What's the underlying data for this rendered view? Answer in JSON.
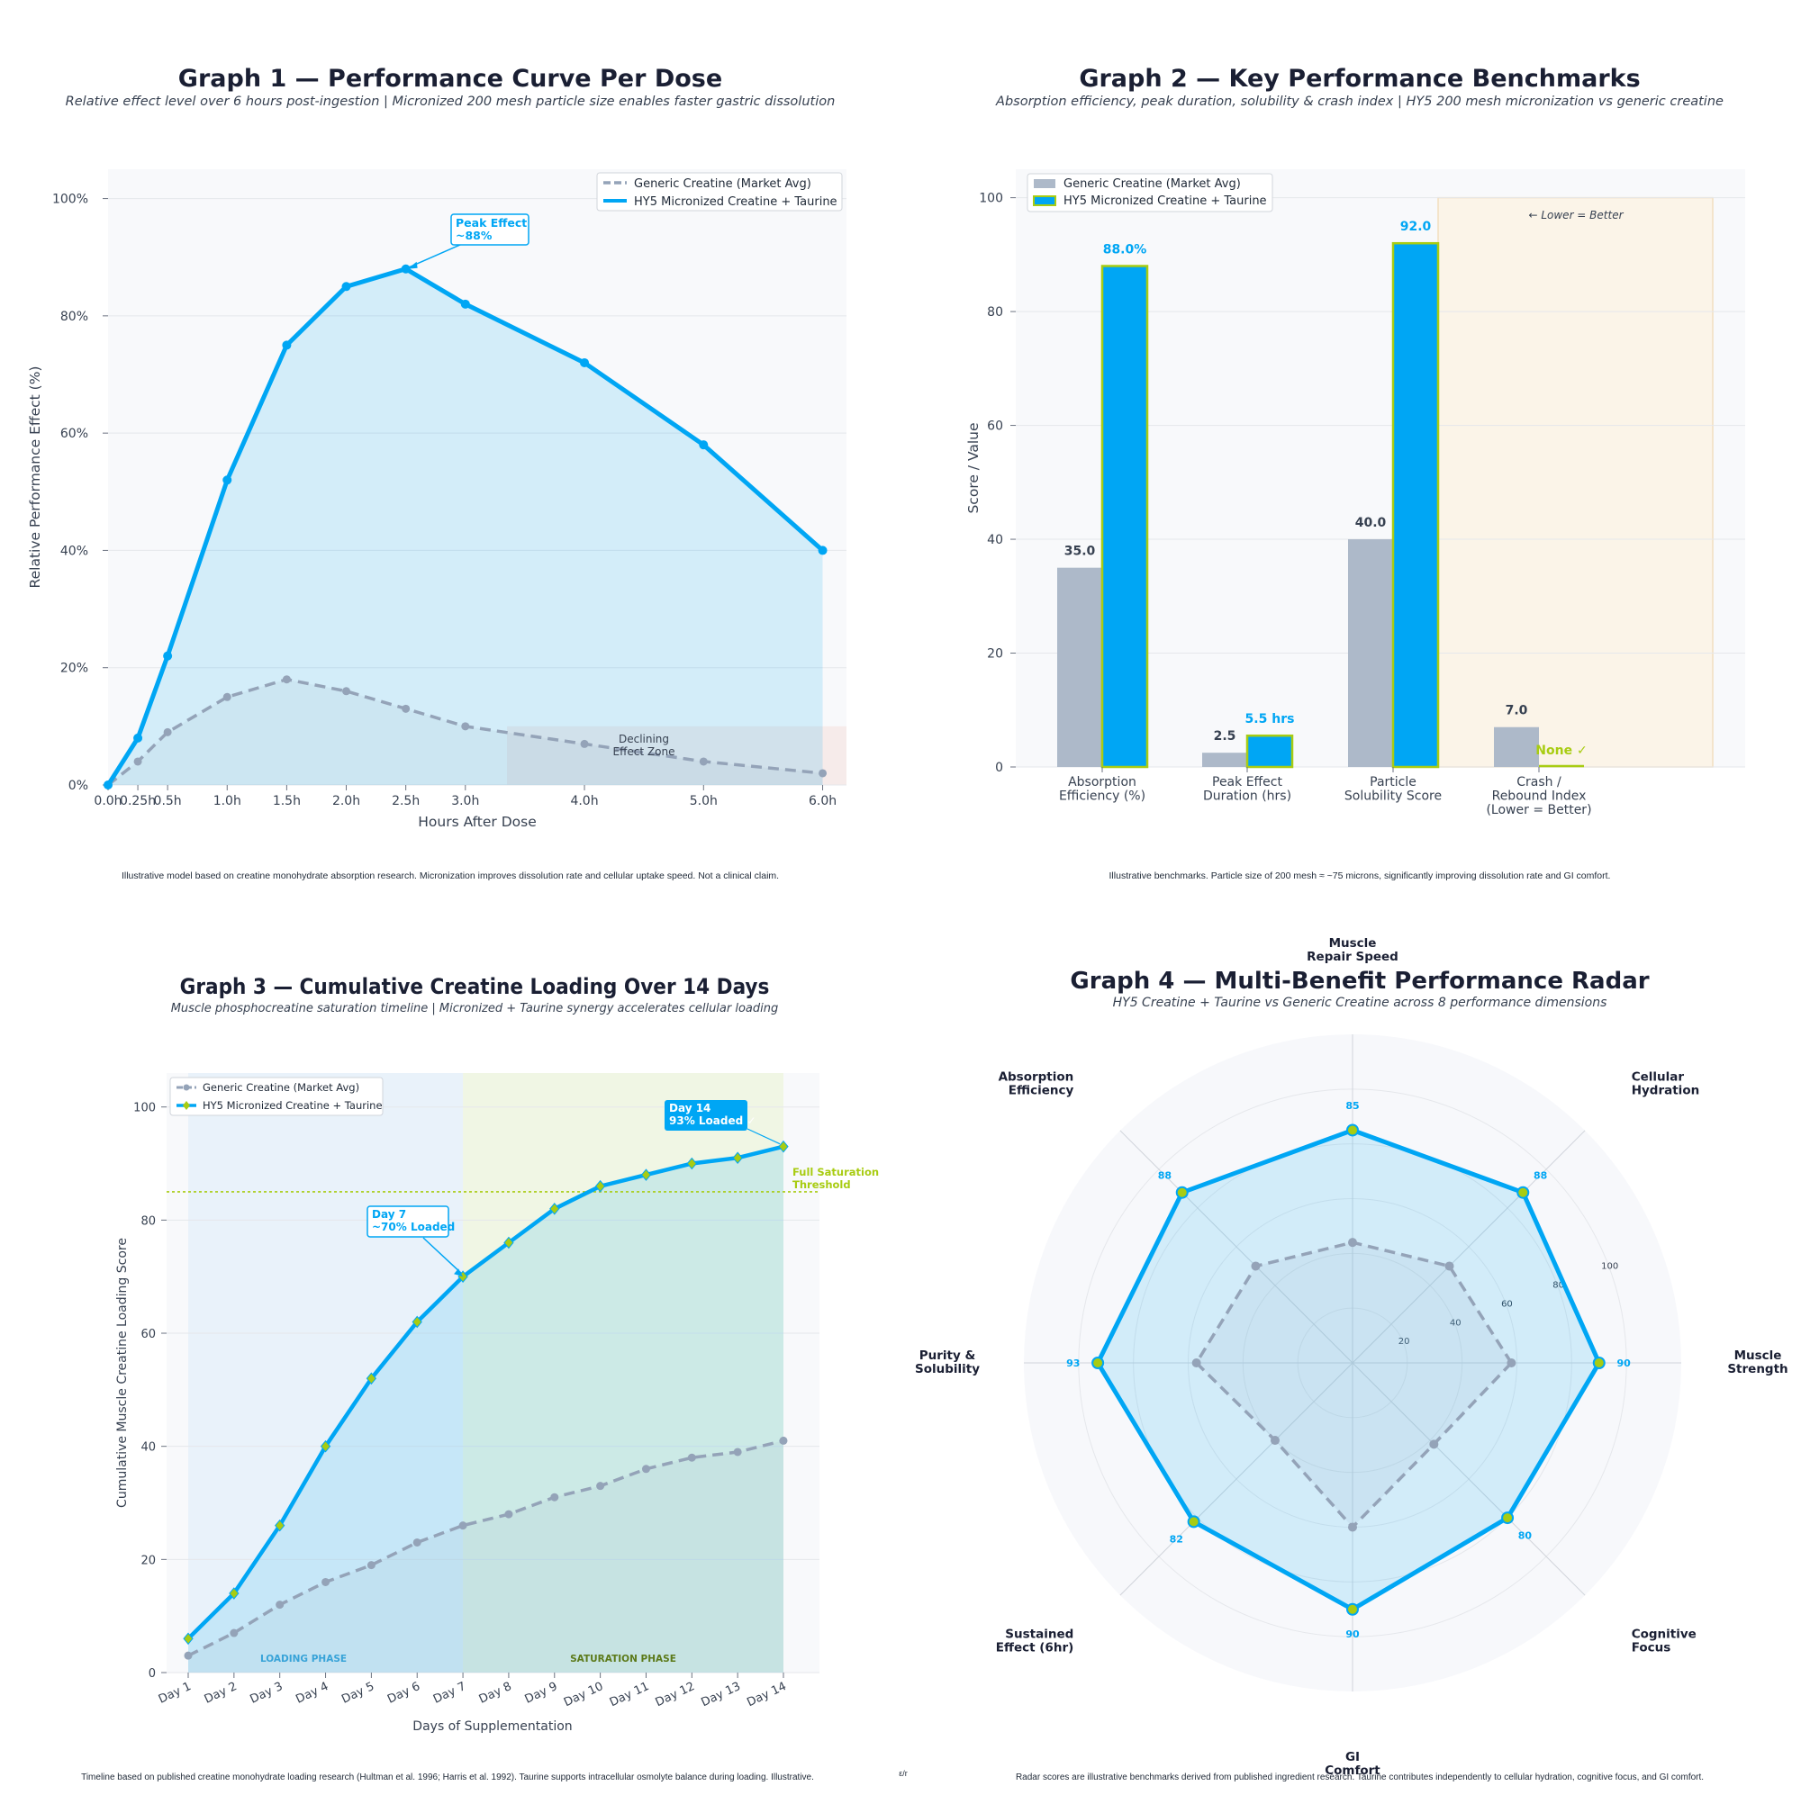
{
  "colors": {
    "hy5": "#00a6f4",
    "generic": "#94a3b8",
    "generic_bar": "#adb9c9",
    "lime": "#a8cc12",
    "annotation_red": "#e07b5a",
    "panel_bg": "#f8f9fb"
  },
  "footer_mark": "ε/r",
  "chart_data": [
    {
      "type": "line",
      "title": "Graph 1 — Performance Curve Per Dose",
      "subtitle": "Relative effect level over 6 hours post-ingestion | Micronized 200 mesh particle size enables faster gastric dissolution",
      "xlabel": "Hours After Dose",
      "ylabel": "Relative Performance Effect (%)",
      "x": [
        0,
        0.25,
        0.5,
        1.0,
        1.5,
        2.0,
        2.5,
        3.0,
        4.0,
        5.0,
        6.0
      ],
      "x_tick_labels": [
        "0.0h",
        "0.25h",
        "0.5h",
        "1.0h",
        "1.5h",
        "2.0h",
        "2.5h",
        "3.0h",
        "4.0h",
        "5.0h",
        "6.0h"
      ],
      "xlim": [
        0,
        6.2
      ],
      "ylim": [
        0,
        105
      ],
      "y_ticks": [
        0,
        20,
        40,
        60,
        80,
        100
      ],
      "y_tick_labels": [
        "0%",
        "20%",
        "40%",
        "60%",
        "80%",
        "100%"
      ],
      "series": [
        {
          "name": "Generic Creatine (Market Avg)",
          "values": [
            0,
            4,
            9,
            15,
            18,
            16,
            13,
            10,
            7,
            4,
            2
          ]
        },
        {
          "name": "HY5 Micronized Creatine + Taurine",
          "values": [
            0,
            8,
            22,
            52,
            75,
            85,
            88,
            82,
            72,
            58,
            40
          ]
        }
      ],
      "annotations": {
        "peak_line1": "Peak Effect",
        "peak_line2": "~88%",
        "declining_line1": "Declining",
        "declining_line2": "Effect Zone"
      },
      "declining_zone_x": [
        3.35,
        6.2
      ],
      "declining_zone_y": [
        0,
        10
      ],
      "legend": "top-right",
      "grid": true,
      "footnote": "Illustrative model based on creatine monohydrate absorption research. Micronization improves dissolution rate and cellular uptake speed. Not a clinical claim."
    },
    {
      "type": "bar",
      "title": "Graph 2 — Key Performance Benchmarks",
      "subtitle": "Absorption efficiency, peak duration, solubility & crash index | HY5 200 mesh micronization vs generic creatine",
      "ylabel": "Score / Value",
      "ylim": [
        0,
        105
      ],
      "y_ticks": [
        0,
        20,
        40,
        60,
        80,
        100
      ],
      "categories": [
        [
          "Absorption",
          "Efficiency (%)"
        ],
        [
          "Peak Effect",
          "Duration (hrs)"
        ],
        [
          "Particle",
          "Solubility Score"
        ],
        [
          "Crash /",
          "Rebound Index",
          "(Lower = Better)"
        ]
      ],
      "series": [
        {
          "name": "Generic Creatine (Market Avg)",
          "values": [
            35,
            2.5,
            40,
            7
          ],
          "labels": [
            "35.0",
            "2.5",
            "40.0",
            "7.0"
          ]
        },
        {
          "name": "HY5 Micronized Creatine + Taurine",
          "values": [
            88,
            5.5,
            92,
            0
          ],
          "labels": [
            "88.0%",
            "5.5 hrs",
            "92.0",
            "None ✓"
          ]
        }
      ],
      "lower_better_note": "← Lower = Better",
      "legend": "top-left",
      "grid": true,
      "footnote": "Illustrative benchmarks. Particle size of 200 mesh ≈ ~75 microns, significantly improving dissolution rate and GI comfort."
    },
    {
      "type": "line",
      "title": "Graph 3 — Cumulative Creatine Loading Over 14 Days",
      "subtitle": "Muscle phosphocreatine saturation timeline | Micronized + Taurine synergy accelerates cellular loading",
      "xlabel": "Days of Supplementation",
      "ylabel": "Cumulative Muscle Creatine Loading Score",
      "categories": [
        "Day 1",
        "Day 2",
        "Day 3",
        "Day 4",
        "Day 5",
        "Day 6",
        "Day 7",
        "Day 8",
        "Day 9",
        "Day 10",
        "Day 11",
        "Day 12",
        "Day 13",
        "Day 14"
      ],
      "ylim": [
        0,
        106
      ],
      "y_ticks": [
        0,
        20,
        40,
        60,
        80,
        100
      ],
      "series": [
        {
          "name": "Generic Creatine (Market Avg)",
          "values": [
            3,
            7,
            12,
            16,
            19,
            23,
            26,
            28,
            31,
            33,
            36,
            38,
            39,
            41
          ]
        },
        {
          "name": "HY5 Micronized Creatine + Taurine",
          "values": [
            6,
            14,
            26,
            40,
            52,
            62,
            70,
            76,
            82,
            86,
            88,
            90,
            91,
            93
          ]
        }
      ],
      "saturation_threshold": 85,
      "annotations": {
        "day7_line1": "Day 7",
        "day7_line2": "~70% Loaded",
        "day14_line1": "Day 14",
        "day14_line2": "93% Loaded ✓",
        "threshold_line1": "Full Saturation",
        "threshold_line2": "Threshold",
        "loading_phase": "LOADING PHASE",
        "saturation_phase": "SATURATION PHASE"
      },
      "legend": "top-left",
      "grid": true,
      "footnote": "Timeline based on published creatine monohydrate loading research (Hultman et al. 1996; Harris et al. 1992). Taurine supports intracellular osmolyte balance during loading. Illustrative."
    },
    {
      "type": "radar",
      "title": "Graph 4 — Multi-Benefit Performance Radar",
      "subtitle": "HY5 Creatine + Taurine vs Generic Creatine across 8 performance dimensions",
      "axes": [
        [
          "Muscle",
          "Strength"
        ],
        [
          "Cognitive",
          "Focus"
        ],
        [
          "GI",
          "Comfort"
        ],
        [
          "Sustained",
          "Effect (6hr)"
        ],
        [
          "Purity &",
          "Solubility"
        ],
        [
          "Absorption",
          "Efficiency"
        ],
        [
          "Muscle",
          "Repair Speed"
        ],
        [
          "Cellular",
          "Hydration"
        ]
      ],
      "rmax": 120,
      "radial_ticks": [
        20,
        40,
        60,
        80,
        100
      ],
      "series": [
        {
          "name": "Generic Creatine (Market Avg)",
          "values": [
            58,
            42,
            60,
            40,
            57,
            50,
            44,
            50
          ]
        },
        {
          "name": "HY5 Micronized Creatine + Taurine",
          "values": [
            90,
            80,
            90,
            82,
            93,
            88,
            85,
            88
          ]
        }
      ],
      "footnote": "Radar scores are illustrative benchmarks derived from published ingredient research. Taurine contributes independently to cellular hydration, cognitive focus, and GI comfort."
    }
  ]
}
